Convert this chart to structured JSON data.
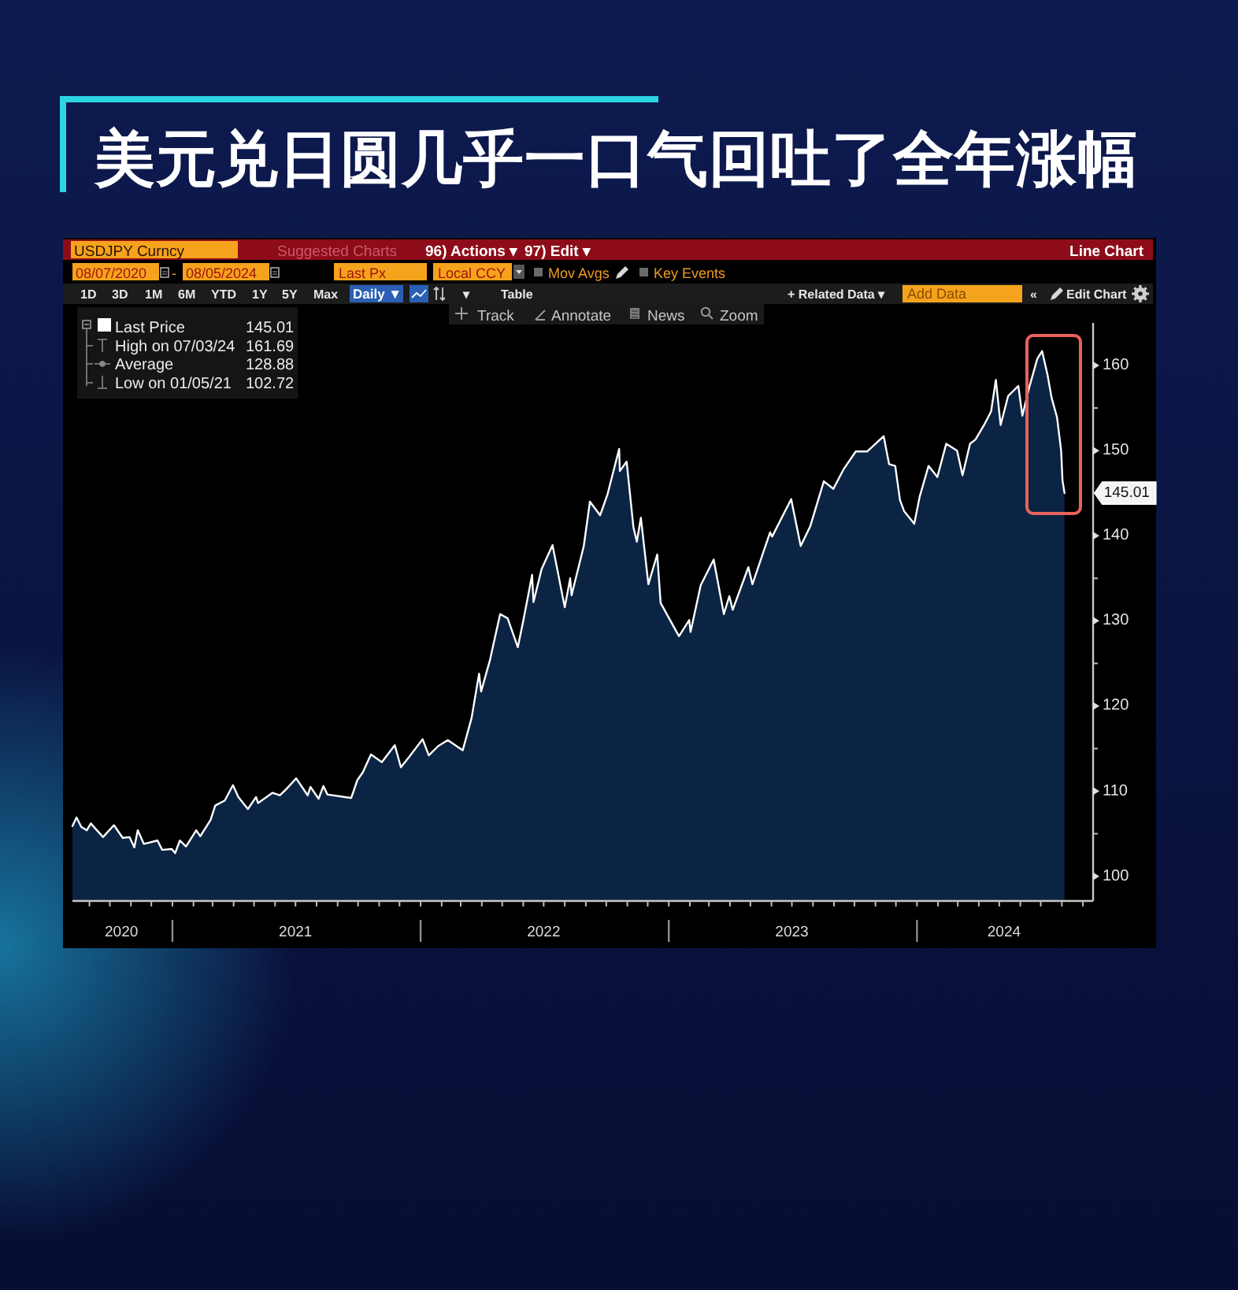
{
  "chart_data": {
    "type": "area",
    "title": "美元兑日圆几乎一口气回吐了全年涨幅",
    "x": [
      "2020-08-07",
      "2020-08-13",
      "2020-08-20",
      "2020-08-28",
      "2020-09-03",
      "2020-09-21",
      "2020-10-07",
      "2020-10-20",
      "2020-10-30",
      "2020-11-06",
      "2020-11-11",
      "2020-11-20",
      "2020-12-10",
      "2020-12-17",
      "2020-12-31",
      "2021-01-05",
      "2021-01-12",
      "2021-01-21",
      "2021-02-05",
      "2021-02-11",
      "2021-02-26",
      "2021-03-05",
      "2021-03-19",
      "2021-03-31",
      "2021-04-08",
      "2021-04-22",
      "2021-05-04",
      "2021-05-07",
      "2021-05-28",
      "2021-06-08",
      "2021-06-17",
      "2021-07-02",
      "2021-07-19",
      "2021-07-23",
      "2021-08-04",
      "2021-08-11",
      "2021-08-17",
      "2021-09-21",
      "2021-09-30",
      "2021-10-08",
      "2021-10-20",
      "2021-11-05",
      "2021-11-24",
      "2021-12-03",
      "2021-12-15",
      "2022-01-04",
      "2022-01-13",
      "2022-01-27",
      "2022-02-10",
      "2022-03-04",
      "2022-03-17",
      "2022-03-28",
      "2022-03-31",
      "2022-04-13",
      "2022-04-28",
      "2022-05-09",
      "2022-05-24",
      "2022-06-01",
      "2022-06-14",
      "2022-06-16",
      "2022-06-28",
      "2022-07-14",
      "2022-08-01",
      "2022-08-09",
      "2022-08-11",
      "2022-08-29",
      "2022-09-07",
      "2022-09-22",
      "2022-10-03",
      "2022-10-20",
      "2022-10-21",
      "2022-10-31",
      "2022-11-10",
      "2022-11-15",
      "2022-11-21",
      "2022-12-02",
      "2022-12-15",
      "2022-12-20",
      "2023-01-16",
      "2023-01-31",
      "2023-02-02",
      "2023-02-17",
      "2023-03-08",
      "2023-03-23",
      "2023-03-31",
      "2023-04-05",
      "2023-04-28",
      "2023-05-04",
      "2023-05-30",
      "2023-06-02",
      "2023-06-30",
      "2023-07-14",
      "2023-07-28",
      "2023-08-17",
      "2023-08-31",
      "2023-09-15",
      "2023-10-03",
      "2023-10-20",
      "2023-11-13",
      "2023-11-21",
      "2023-11-30",
      "2023-12-07",
      "2023-12-13",
      "2023-12-28",
      "2024-01-05",
      "2024-01-18",
      "2024-01-31",
      "2024-02-13",
      "2024-02-29",
      "2024-03-08",
      "2024-03-19",
      "2024-03-27",
      "2024-04-10",
      "2024-04-19",
      "2024-04-26",
      "2024-05-03",
      "2024-05-14",
      "2024-05-29",
      "2024-06-04",
      "2024-06-14",
      "2024-06-26",
      "2024-07-03",
      "2024-07-11",
      "2024-07-17",
      "2024-07-25",
      "2024-07-31",
      "2024-08-02",
      "2024-08-05"
    ],
    "series": [
      {
        "name": "Last Price",
        "color": "#ffffff",
        "values": [
          105.9,
          106.9,
          105.8,
          105.4,
          106.2,
          104.6,
          106.0,
          104.5,
          104.6,
          103.4,
          105.4,
          103.8,
          104.2,
          103.1,
          103.2,
          102.72,
          104.2,
          103.5,
          105.4,
          104.7,
          106.6,
          108.3,
          108.9,
          110.7,
          109.3,
          107.9,
          109.3,
          108.6,
          109.8,
          109.5,
          110.2,
          111.5,
          109.5,
          110.5,
          109.1,
          110.6,
          109.6,
          109.2,
          111.3,
          112.2,
          114.3,
          113.4,
          115.4,
          112.8,
          114.0,
          116.1,
          114.2,
          115.3,
          116.0,
          114.8,
          118.6,
          123.8,
          121.7,
          125.4,
          130.8,
          130.3,
          126.9,
          130.0,
          135.4,
          132.2,
          136.1,
          138.9,
          131.6,
          135.0,
          133.0,
          138.8,
          144.0,
          142.4,
          144.9,
          150.2,
          147.6,
          148.7,
          141.0,
          139.3,
          142.1,
          134.3,
          137.8,
          132.1,
          128.2,
          130.1,
          128.7,
          134.2,
          137.2,
          130.8,
          132.9,
          131.3,
          136.3,
          134.3,
          140.4,
          139.9,
          144.3,
          138.8,
          141.1,
          146.4,
          145.5,
          147.8,
          149.9,
          149.9,
          151.7,
          148.4,
          148.2,
          144.2,
          142.9,
          141.4,
          144.6,
          148.2,
          146.9,
          150.8,
          150.0,
          147.1,
          150.8,
          151.3,
          153.2,
          154.6,
          158.3,
          153.0,
          156.4,
          157.6,
          154.1,
          157.4,
          160.8,
          161.69,
          158.9,
          156.2,
          153.9,
          150.0,
          146.5,
          145.01
        ]
      }
    ],
    "xlim": [
      "2020-08-07",
      "2024-09-16"
    ],
    "ylim": [
      97.1,
      165
    ],
    "xticks": [
      {
        "value": "2020-09-01",
        "label": null
      },
      {
        "value": "2020-10-01",
        "label": null
      },
      {
        "value": "2020-10-18",
        "label": "2020"
      },
      {
        "value": "2020-11-01",
        "label": null
      },
      {
        "value": "2020-12-01",
        "label": null
      },
      {
        "value": "2021-01-01",
        "label": null
      },
      {
        "value": "2021-02-01",
        "label": null
      },
      {
        "value": "2021-03-01",
        "label": null
      },
      {
        "value": "2021-04-01",
        "label": null
      },
      {
        "value": "2021-05-01",
        "label": null
      },
      {
        "value": "2021-06-01",
        "label": null
      },
      {
        "value": "2021-07-01",
        "label": null
      },
      {
        "value": "2021-07-01",
        "label": "2021"
      },
      {
        "value": "2021-08-01",
        "label": null
      },
      {
        "value": "2021-09-01",
        "label": null
      },
      {
        "value": "2021-10-01",
        "label": null
      },
      {
        "value": "2021-11-01",
        "label": null
      },
      {
        "value": "2021-12-01",
        "label": null
      },
      {
        "value": "2022-01-01",
        "label": null
      },
      {
        "value": "2022-02-01",
        "label": null
      },
      {
        "value": "2022-03-01",
        "label": null
      },
      {
        "value": "2022-04-01",
        "label": null
      },
      {
        "value": "2022-05-01",
        "label": null
      },
      {
        "value": "2022-06-01",
        "label": null
      },
      {
        "value": "2022-07-01",
        "label": null
      },
      {
        "value": "2022-07-01",
        "label": "2022"
      },
      {
        "value": "2022-08-01",
        "label": null
      },
      {
        "value": "2022-09-01",
        "label": null
      },
      {
        "value": "2022-10-01",
        "label": null
      },
      {
        "value": "2022-11-01",
        "label": null
      },
      {
        "value": "2022-12-01",
        "label": null
      },
      {
        "value": "2023-01-01",
        "label": null
      },
      {
        "value": "2023-02-01",
        "label": null
      },
      {
        "value": "2023-03-01",
        "label": null
      },
      {
        "value": "2023-04-01",
        "label": null
      },
      {
        "value": "2023-05-01",
        "label": null
      },
      {
        "value": "2023-06-01",
        "label": null
      },
      {
        "value": "2023-07-01",
        "label": null
      },
      {
        "value": "2023-07-01",
        "label": "2023"
      },
      {
        "value": "2023-08-01",
        "label": null
      },
      {
        "value": "2023-09-01",
        "label": null
      },
      {
        "value": "2023-10-01",
        "label": null
      },
      {
        "value": "2023-11-01",
        "label": null
      },
      {
        "value": "2023-12-01",
        "label": null
      },
      {
        "value": "2024-01-01",
        "label": null
      },
      {
        "value": "2024-02-01",
        "label": null
      },
      {
        "value": "2024-03-01",
        "label": null
      },
      {
        "value": "2024-04-01",
        "label": null
      },
      {
        "value": "2024-05-01",
        "label": null
      },
      {
        "value": "2024-05-08",
        "label": "2024"
      },
      {
        "value": "2024-06-01",
        "label": null
      },
      {
        "value": "2024-07-01",
        "label": null
      },
      {
        "value": "2024-08-01",
        "label": null
      },
      {
        "value": "2024-09-01",
        "label": null
      }
    ],
    "yticks": [
      100,
      {
        "value": 105,
        "label": null
      },
      110,
      {
        "value": 115,
        "label": null
      },
      120,
      {
        "value": 125,
        "label": null
      },
      130,
      {
        "value": 135,
        "label": null
      },
      140,
      {
        "value": 145,
        "label": null
      },
      150,
      {
        "value": 155,
        "label": null
      },
      160
    ],
    "legend": "top left",
    "annotations": [
      "USDJPY Curncy",
      "Suggested Charts",
      "96) Actions ▾",
      "97) Edit ▾",
      "Line Chart",
      "08/07/2020",
      "-",
      "08/05/2024",
      "Last Px",
      "Local CCY",
      "Mov Avgs",
      "Key Events",
      "1D",
      "3D",
      "1M",
      "6M",
      "YTD",
      "1Y",
      "5Y",
      "Max",
      "Daily ▼",
      "▾",
      "Table",
      "+ Related Data ▾",
      "Add Data",
      "«",
      "Edit Chart",
      "Track",
      "Annotate",
      "News",
      "Zoom",
      "145.01",
      "High on 07/03/24",
      "161.69",
      "Average",
      "128.88",
      "Low on 01/05/21",
      "102.72",
      {
        "text": "145.01",
        "x": "2024-08-05",
        "y": 145.01
      }
    ]
  }
}
